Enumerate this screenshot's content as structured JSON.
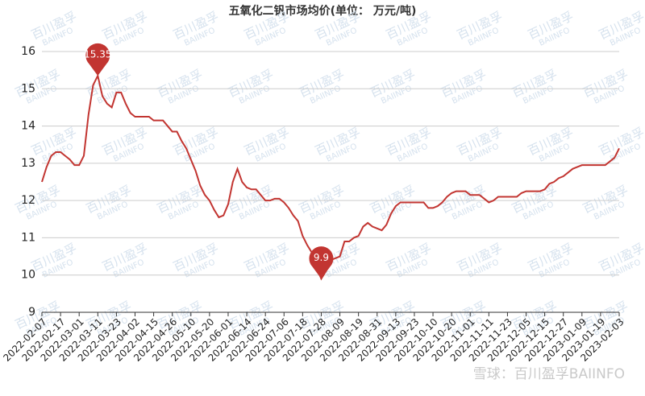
{
  "chart_data": {
    "type": "line",
    "title": "五氧化二钒市场均价(单位：  万元/吨)",
    "watermark": "百川盈孚",
    "watermark_sub": "BAIINFO",
    "source": "雪球：百川盈孚BAIINFO",
    "categories": [
      "2022-02-07",
      null,
      null,
      null,
      "2022-02-17",
      null,
      null,
      null,
      "2022-03-01",
      null,
      null,
      null,
      "2022-03-11",
      null,
      null,
      null,
      "2022-03-23",
      null,
      null,
      null,
      "2022-04-02",
      null,
      null,
      null,
      "2022-04-15",
      null,
      null,
      null,
      "2022-04-26",
      null,
      null,
      null,
      "2022-05-10",
      null,
      null,
      null,
      "2022-05-20",
      null,
      null,
      null,
      "2022-06-01",
      null,
      null,
      null,
      "2022-06-14",
      null,
      null,
      null,
      "2022-06-24",
      null,
      null,
      null,
      "2022-07-06",
      null,
      null,
      null,
      "2022-07-18",
      null,
      null,
      null,
      "2022-07-28",
      null,
      null,
      null,
      "2022-08-09",
      null,
      null,
      null,
      "2022-08-19",
      null,
      null,
      null,
      "2022-08-31",
      null,
      null,
      null,
      "2022-09-13",
      null,
      null,
      null,
      "2022-09-23",
      null,
      null,
      null,
      "2022-10-10",
      null,
      null,
      null,
      "2022-10-20",
      null,
      null,
      null,
      "2022-11-01",
      null,
      null,
      null,
      "2022-11-11",
      null,
      null,
      null,
      "2022-11-23",
      null,
      null,
      null,
      "2022-12-05",
      null,
      null,
      null,
      "2022-12-15",
      null,
      null,
      null,
      "2022-12-27",
      null,
      null,
      null,
      "2023-01-09",
      null,
      null,
      null,
      "2023-01-19",
      null,
      null,
      null,
      "2023-02-03"
    ],
    "series": [
      {
        "name": "五氧化二钒",
        "color": "#c23531",
        "values": [
          12.5,
          12.9,
          13.2,
          13.3,
          13.3,
          13.2,
          13.1,
          12.95,
          12.95,
          13.2,
          14.3,
          15.1,
          15.35,
          14.8,
          14.6,
          14.5,
          14.9,
          14.9,
          14.6,
          14.35,
          14.25,
          14.25,
          14.25,
          14.25,
          14.15,
          14.15,
          14.15,
          14.0,
          13.85,
          13.85,
          13.6,
          13.4,
          13.1,
          12.8,
          12.4,
          12.15,
          12.0,
          11.75,
          11.55,
          11.6,
          11.9,
          12.5,
          12.85,
          12.5,
          12.35,
          12.3,
          12.3,
          12.15,
          12.0,
          12.0,
          12.05,
          12.05,
          11.95,
          11.8,
          11.6,
          11.45,
          11.05,
          10.8,
          10.6,
          10.2,
          9.9,
          10.1,
          10.4,
          10.45,
          10.5,
          10.9,
          10.9,
          11.0,
          11.05,
          11.3,
          11.4,
          11.3,
          11.25,
          11.2,
          11.35,
          11.65,
          11.85,
          11.95,
          11.95,
          11.95,
          11.95,
          11.95,
          11.95,
          11.8,
          11.8,
          11.85,
          11.95,
          12.1,
          12.2,
          12.25,
          12.25,
          12.25,
          12.15,
          12.15,
          12.15,
          12.05,
          11.95,
          12.0,
          12.1,
          12.1,
          12.1,
          12.1,
          12.1,
          12.2,
          12.25,
          12.25,
          12.25,
          12.25,
          12.3,
          12.45,
          12.5,
          12.6,
          12.65,
          12.75,
          12.85,
          12.9,
          12.95,
          12.95,
          12.95,
          12.95,
          12.95,
          12.95,
          13.05,
          13.15,
          13.4
        ]
      }
    ],
    "mark_points": [
      "max",
      "min"
    ],
    "ylim": [
      9,
      16
    ],
    "yticks": [
      9,
      10,
      11,
      12,
      13,
      14,
      15,
      16
    ],
    "grid": true
  }
}
